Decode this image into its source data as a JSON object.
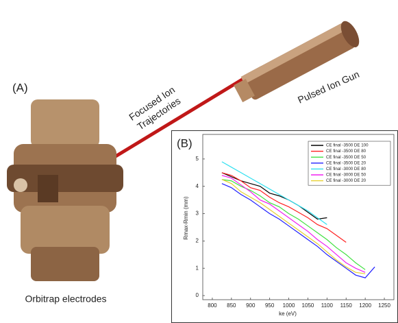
{
  "illustration": {
    "panel_label": "(A)",
    "beam_label": [
      "Focused Ion",
      "Trajectories"
    ],
    "gun_label": "Pulsed Ion Gun",
    "trap_label": "Orbitrap electrodes"
  },
  "chart_data": {
    "type": "line",
    "panel_label": "(B)",
    "x_label": "ke (eV)",
    "y_label": "Rmax-Rmin (mm)",
    "x": [
      825,
      850,
      875,
      900,
      925,
      950,
      975,
      1000,
      1025,
      1050,
      1075,
      1100,
      1125,
      1150,
      1175,
      1200,
      1225
    ],
    "series": [
      {
        "name": "CE final -3500 DE 100",
        "color": "#000000",
        "values": [
          4.5,
          4.35,
          4.2,
          4.1,
          4.0,
          3.75,
          3.65,
          3.5,
          3.3,
          3.05,
          2.8,
          2.85,
          null,
          null,
          null,
          null,
          null
        ]
      },
      {
        "name": "CE final -3500 DE 80",
        "color": "#ff2020",
        "values": [
          4.5,
          4.4,
          4.2,
          3.95,
          3.85,
          3.6,
          3.4,
          3.25,
          3.05,
          2.85,
          2.6,
          2.45,
          2.2,
          1.95,
          null,
          null,
          null
        ]
      },
      {
        "name": "CE final -3500 DE 50",
        "color": "#40e040",
        "values": [
          4.25,
          4.2,
          4.0,
          3.85,
          3.65,
          3.4,
          3.25,
          3.0,
          2.8,
          2.55,
          2.3,
          2.05,
          1.75,
          1.5,
          1.2,
          0.95,
          null
        ]
      },
      {
        "name": "CE final -3500 DE 20",
        "color": "#2020ff",
        "values": [
          4.1,
          3.95,
          3.7,
          3.5,
          3.25,
          3.0,
          2.8,
          2.55,
          2.3,
          2.05,
          1.8,
          1.5,
          1.25,
          1.0,
          0.75,
          0.65,
          1.05
        ]
      },
      {
        "name": "CE final -3000 DE 80",
        "color": "#30e0f0",
        "values": [
          4.9,
          4.7,
          4.5,
          4.3,
          4.1,
          3.9,
          3.7,
          3.5,
          3.3,
          3.1,
          2.85,
          2.6,
          null,
          null,
          null,
          null,
          null
        ]
      },
      {
        "name": "CE final -3000 DE 50",
        "color": "#f020f0",
        "values": [
          4.4,
          4.3,
          4.05,
          3.8,
          3.5,
          3.35,
          3.1,
          2.85,
          2.6,
          2.35,
          2.05,
          1.8,
          1.5,
          1.2,
          1.0,
          0.85,
          null
        ]
      },
      {
        "name": "CE final -3000 DE 20",
        "color": "#e8d030",
        "values": [
          4.25,
          4.1,
          3.8,
          3.6,
          3.4,
          3.15,
          2.9,
          2.65,
          2.4,
          2.15,
          1.9,
          1.6,
          1.3,
          1.05,
          0.85,
          0.8,
          null
        ]
      }
    ],
    "xlim": [
      775,
      1275
    ],
    "ylim": [
      -0.15,
      5.9
    ],
    "xticks": [
      800,
      850,
      900,
      950,
      1000,
      1050,
      1100,
      1150,
      1200,
      1250
    ],
    "yticks": [
      0,
      1,
      2,
      3,
      4,
      5
    ],
    "legend": "upper right"
  }
}
